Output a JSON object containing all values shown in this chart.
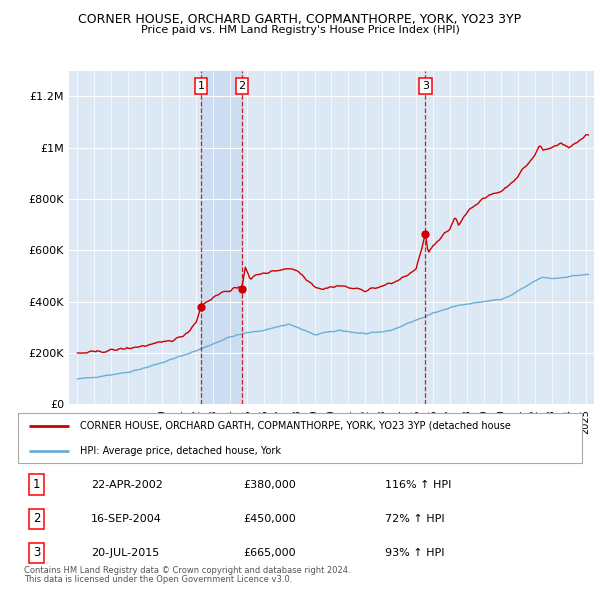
{
  "title": "CORNER HOUSE, ORCHARD GARTH, COPMANTHORPE, YORK, YO23 3YP",
  "subtitle": "Price paid vs. HM Land Registry's House Price Index (HPI)",
  "background_color": "#ffffff",
  "plot_bg_color": "#dde8f5",
  "grid_color": "#ffffff",
  "ylim": [
    0,
    1300000
  ],
  "yticks": [
    0,
    200000,
    400000,
    600000,
    800000,
    1000000,
    1200000
  ],
  "ytick_labels": [
    "£0",
    "£200K",
    "£400K",
    "£600K",
    "£800K",
    "£1M",
    "£1.2M"
  ],
  "transactions": [
    {
      "date_num": 2002.29,
      "price": 380000,
      "label": "1",
      "date_str": "22-APR-2002",
      "pct": "116%"
    },
    {
      "date_num": 2004.71,
      "price": 450000,
      "label": "2",
      "date_str": "16-SEP-2004",
      "pct": "72%"
    },
    {
      "date_num": 2015.54,
      "price": 665000,
      "label": "3",
      "date_str": "20-JUL-2015",
      "pct": "93%"
    }
  ],
  "hpi_line_color": "#6baed6",
  "price_line_color": "#cc0000",
  "vline_color": "#cc0000",
  "shade_color": "#c6d9f0",
  "legend_label_red": "CORNER HOUSE, ORCHARD GARTH, COPMANTHORPE, YORK, YO23 3YP (detached house",
  "legend_label_blue": "HPI: Average price, detached house, York",
  "footer1": "Contains HM Land Registry data © Crown copyright and database right 2024.",
  "footer2": "This data is licensed under the Open Government Licence v3.0.",
  "table_rows": [
    [
      "1",
      "22-APR-2002",
      "£380,000",
      "116% ↑ HPI"
    ],
    [
      "2",
      "16-SEP-2004",
      "£450,000",
      "72% ↑ HPI"
    ],
    [
      "3",
      "20-JUL-2015",
      "£665,000",
      "93% ↑ HPI"
    ]
  ]
}
